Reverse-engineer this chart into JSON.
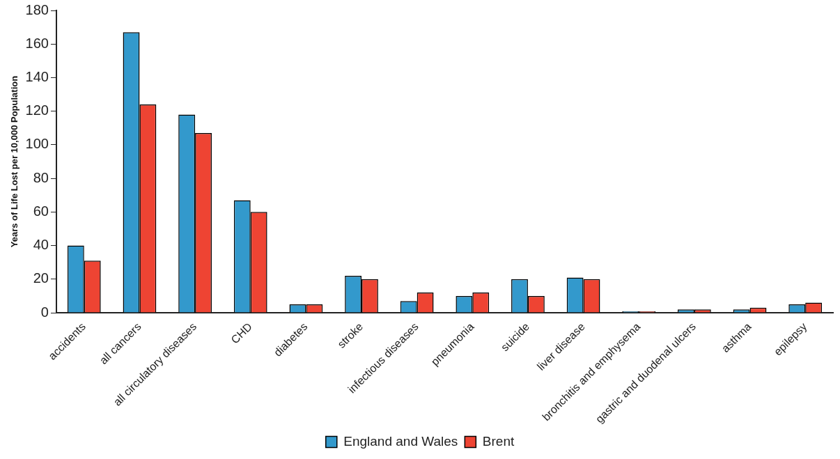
{
  "chart_data": {
    "type": "bar",
    "ylabel": "Years of Life Lost per 10,000 Population",
    "categories": [
      "accidents",
      "all cancers",
      "all circulatory diseases",
      "CHD",
      "diabetes",
      "stroke",
      "infectious diseases",
      "pneumonia",
      "suicide",
      "liver disease",
      "bronchitis and emphysema",
      "gastric and duodenal ulcers",
      "asthma",
      "epilepsy"
    ],
    "series": [
      {
        "name": "England and Wales",
        "color": "#3399cc",
        "values": [
          40,
          167,
          118,
          67,
          5,
          22,
          7,
          10,
          20,
          21,
          1,
          2,
          2,
          5
        ]
      },
      {
        "name": "Brent",
        "color": "#ee4433",
        "values": [
          31,
          124,
          107,
          60,
          5,
          20,
          12,
          12,
          10,
          20,
          1,
          2,
          3,
          6
        ]
      }
    ],
    "ylim": [
      0,
      180
    ],
    "yticks": [
      0,
      20,
      40,
      60,
      80,
      100,
      120,
      140,
      160,
      180
    ],
    "grid": false,
    "legend": "bottom"
  }
}
